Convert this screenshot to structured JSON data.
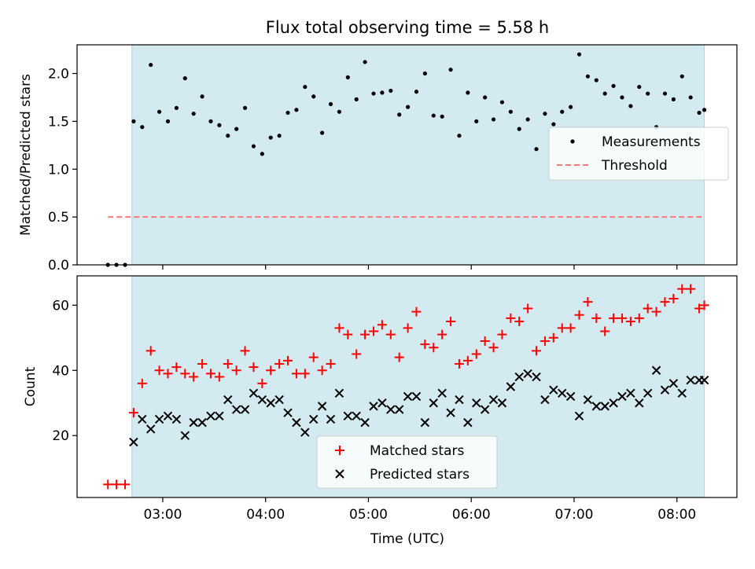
{
  "figure_title": "Flux total observing time = 5.58 h",
  "colors": {
    "shade": "#d3eaf0",
    "shade_edge": "#a9d4de",
    "matched": "#ff0000",
    "predicted": "#000000",
    "measurement": "#000000",
    "threshold": "#ff7a7a"
  },
  "chart_data": [
    {
      "type": "scatter",
      "panel": "top",
      "ylabel": "Matched/Predicted stars",
      "xlabel": "",
      "xlim": [
        "02:10",
        "08:35"
      ],
      "ylim": [
        0,
        2.3
      ],
      "y_ticks": [
        "0.0",
        "0.5",
        "1.0",
        "1.5",
        "2.0"
      ],
      "shaded_span": [
        "02:42",
        "08:16"
      ],
      "legend_position": "center-right",
      "threshold": {
        "name": "Threshold",
        "value": 0.5,
        "x_range": [
          "02:28",
          "08:15"
        ]
      },
      "series": [
        {
          "name": "Measurements",
          "x": [
            "02:28",
            "02:33",
            "02:38",
            "02:43",
            "02:48",
            "02:53",
            "02:58",
            "03:03",
            "03:08",
            "03:13",
            "03:18",
            "03:23",
            "03:28",
            "03:33",
            "03:38",
            "03:43",
            "03:48",
            "03:53",
            "03:58",
            "04:03",
            "04:08",
            "04:13",
            "04:18",
            "04:23",
            "04:28",
            "04:33",
            "04:38",
            "04:43",
            "04:48",
            "04:53",
            "04:58",
            "05:03",
            "05:08",
            "05:13",
            "05:18",
            "05:23",
            "05:28",
            "05:33",
            "05:38",
            "05:43",
            "05:48",
            "05:53",
            "05:58",
            "06:03",
            "06:08",
            "06:13",
            "06:18",
            "06:23",
            "06:28",
            "06:33",
            "06:38",
            "06:43",
            "06:48",
            "06:53",
            "06:58",
            "07:03",
            "07:08",
            "07:13",
            "07:18",
            "07:23",
            "07:28",
            "07:33",
            "07:38",
            "07:43",
            "07:48",
            "07:53",
            "07:58",
            "08:03",
            "08:08",
            "08:13",
            "08:16"
          ],
          "y": [
            0,
            0,
            0,
            1.5,
            1.44,
            2.09,
            1.6,
            1.5,
            1.64,
            1.95,
            1.58,
            1.76,
            1.5,
            1.46,
            1.35,
            1.42,
            1.64,
            1.24,
            1.16,
            1.33,
            1.35,
            1.59,
            1.62,
            1.86,
            1.76,
            1.38,
            1.68,
            1.6,
            1.96,
            1.73,
            2.12,
            1.79,
            1.8,
            1.82,
            1.57,
            1.65,
            1.81,
            2.0,
            1.56,
            1.55,
            2.04,
            1.35,
            1.8,
            1.5,
            1.75,
            1.52,
            1.7,
            1.6,
            1.42,
            1.52,
            1.21,
            1.58,
            1.47,
            1.6,
            1.65,
            2.2,
            1.97,
            1.93,
            1.79,
            1.87,
            1.75,
            1.66,
            1.86,
            1.79,
            1.44,
            1.79,
            1.73,
            1.97,
            1.75,
            1.59,
            1.62
          ]
        }
      ]
    },
    {
      "type": "scatter",
      "panel": "bottom",
      "ylabel": "Count",
      "xlabel": "Time (UTC)",
      "xlim": [
        "02:10",
        "08:35"
      ],
      "ylim": [
        1,
        69
      ],
      "x_ticks": [
        "03:00",
        "04:00",
        "05:00",
        "06:00",
        "07:00",
        "08:00"
      ],
      "y_ticks": [
        "20",
        "40",
        "60"
      ],
      "shaded_span": [
        "02:42",
        "08:16"
      ],
      "legend_position": "lower-center",
      "series": [
        {
          "name": "Matched stars",
          "x": [
            "02:28",
            "02:33",
            "02:38",
            "02:43",
            "02:48",
            "02:53",
            "02:58",
            "03:03",
            "03:08",
            "03:13",
            "03:18",
            "03:23",
            "03:28",
            "03:33",
            "03:38",
            "03:43",
            "03:48",
            "03:53",
            "03:58",
            "04:03",
            "04:08",
            "04:13",
            "04:18",
            "04:23",
            "04:28",
            "04:33",
            "04:38",
            "04:43",
            "04:48",
            "04:53",
            "04:58",
            "05:03",
            "05:08",
            "05:13",
            "05:18",
            "05:23",
            "05:28",
            "05:33",
            "05:38",
            "05:43",
            "05:48",
            "05:53",
            "05:58",
            "06:03",
            "06:08",
            "06:13",
            "06:18",
            "06:23",
            "06:28",
            "06:33",
            "06:38",
            "06:43",
            "06:48",
            "06:53",
            "06:58",
            "07:03",
            "07:08",
            "07:13",
            "07:18",
            "07:23",
            "07:28",
            "07:33",
            "07:38",
            "07:43",
            "07:48",
            "07:53",
            "07:58",
            "08:03",
            "08:08",
            "08:13",
            "08:16"
          ],
          "y": [
            5,
            5,
            5,
            27,
            36,
            46,
            40,
            39,
            41,
            39,
            38,
            42,
            39,
            38,
            42,
            40,
            46,
            41,
            36,
            40,
            42,
            43,
            39,
            39,
            44,
            40,
            42,
            53,
            51,
            45,
            51,
            52,
            54,
            51,
            44,
            53,
            58,
            48,
            47,
            51,
            55,
            42,
            43,
            45,
            49,
            47,
            51,
            56,
            55,
            59,
            46,
            49,
            50,
            53,
            53,
            57,
            61,
            56,
            52,
            56,
            56,
            55,
            56,
            59,
            58,
            61,
            62,
            65,
            65,
            59,
            60
          ]
        },
        {
          "name": "Predicted stars",
          "x": [
            "02:43",
            "02:48",
            "02:53",
            "02:58",
            "03:03",
            "03:08",
            "03:13",
            "03:18",
            "03:23",
            "03:28",
            "03:33",
            "03:38",
            "03:43",
            "03:48",
            "03:53",
            "03:58",
            "04:03",
            "04:08",
            "04:13",
            "04:18",
            "04:23",
            "04:28",
            "04:33",
            "04:38",
            "04:43",
            "04:48",
            "04:53",
            "04:58",
            "05:03",
            "05:08",
            "05:13",
            "05:18",
            "05:23",
            "05:28",
            "05:33",
            "05:38",
            "05:43",
            "05:48",
            "05:53",
            "05:58",
            "06:03",
            "06:08",
            "06:13",
            "06:18",
            "06:23",
            "06:28",
            "06:33",
            "06:38",
            "06:43",
            "06:48",
            "06:53",
            "06:58",
            "07:03",
            "07:08",
            "07:13",
            "07:18",
            "07:23",
            "07:28",
            "07:33",
            "07:38",
            "07:43",
            "07:48",
            "07:53",
            "07:58",
            "08:03",
            "08:08",
            "08:13",
            "08:16"
          ],
          "y": [
            18,
            25,
            22,
            25,
            26,
            25,
            20,
            24,
            24,
            26,
            26,
            31,
            28,
            28,
            33,
            31,
            30,
            31,
            27,
            24,
            21,
            25,
            29,
            25,
            33,
            26,
            26,
            24,
            29,
            30,
            28,
            28,
            32,
            32,
            24,
            30,
            33,
            27,
            31,
            24,
            30,
            28,
            31,
            30,
            35,
            38,
            39,
            38,
            31,
            34,
            33,
            32,
            26,
            31,
            29,
            29,
            30,
            32,
            33,
            30,
            33,
            40,
            34,
            36,
            33,
            37,
            37,
            37
          ]
        }
      ]
    }
  ]
}
